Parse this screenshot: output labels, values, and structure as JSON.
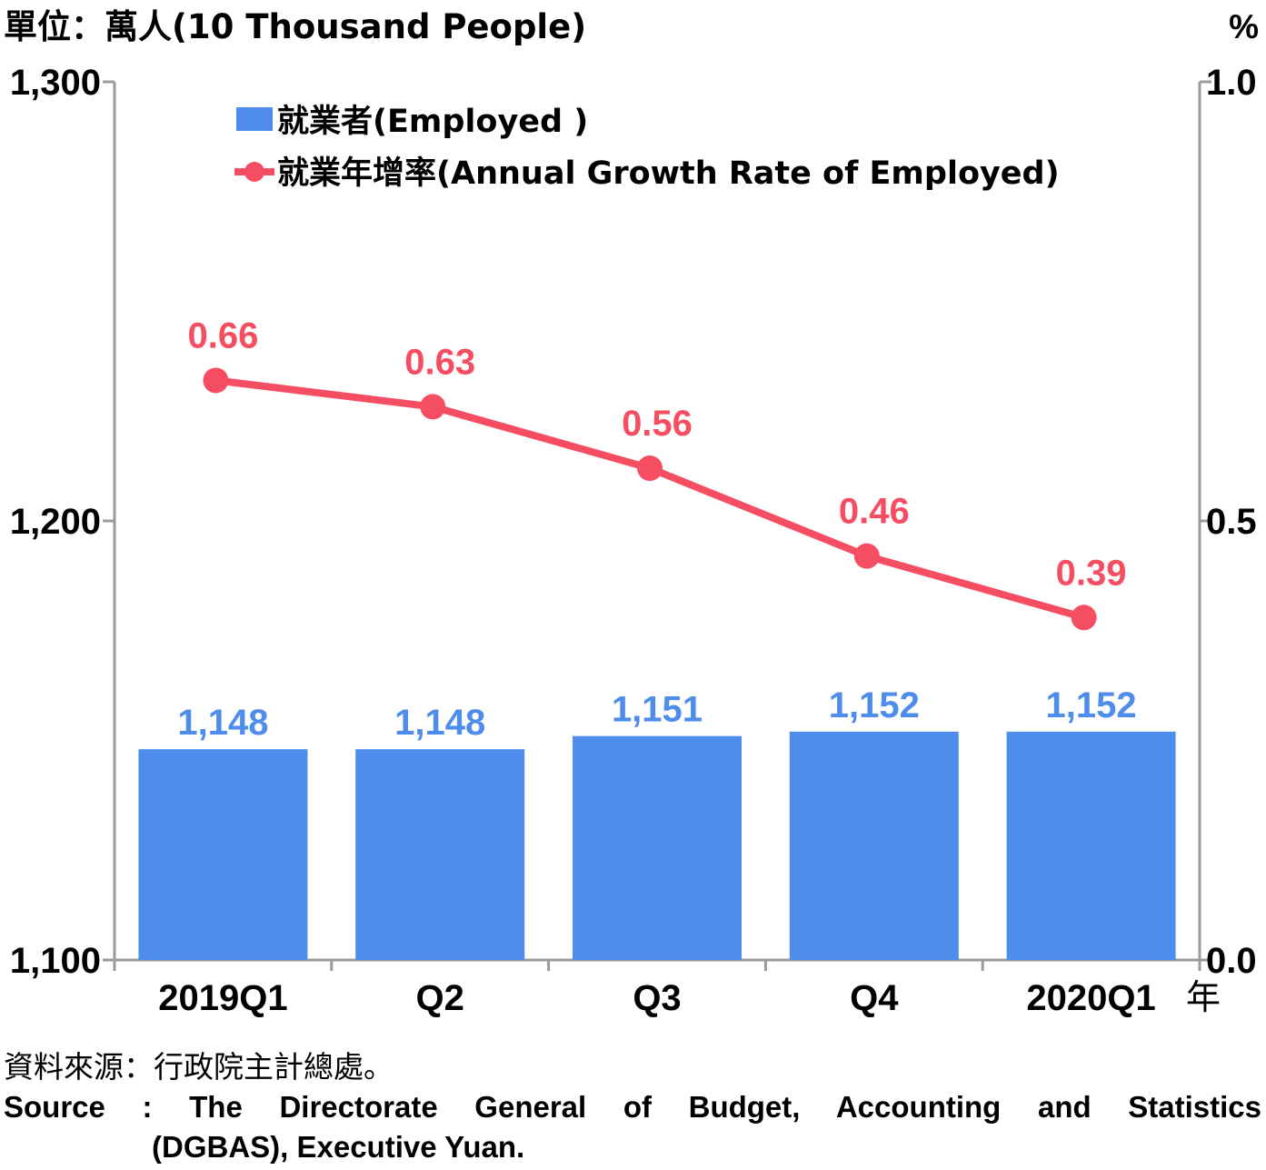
{
  "chart_data": {
    "type": "bar+line",
    "unit_left": "單位：萬人(10 Thousand People)",
    "unit_right": "%",
    "x_unit": "年",
    "categories": [
      "2019Q1",
      "Q2",
      "Q3",
      "Q4",
      "2020Q1"
    ],
    "y_left": {
      "min": 1100,
      "max": 1300,
      "ticks": [
        "1,100",
        "1,200",
        "1,300"
      ]
    },
    "y_right": {
      "min": 0.0,
      "max": 1.0,
      "ticks": [
        "0.0",
        "0.5",
        "1.0"
      ]
    },
    "series": [
      {
        "name": "就業者(Employed )",
        "type": "bar",
        "axis": "left",
        "color": "#4f8ded",
        "values": [
          1148,
          1148,
          1151,
          1152,
          1152
        ],
        "labels": [
          "1,148",
          "1,148",
          "1,151",
          "1,152",
          "1,152"
        ],
        "label_color": "#4f8ded"
      },
      {
        "name": "就業年增率(Annual Growth Rate of Employed)",
        "type": "line",
        "axis": "right",
        "color": "#f54d61",
        "values": [
          0.66,
          0.63,
          0.56,
          0.46,
          0.39
        ],
        "labels": [
          "0.66",
          "0.63",
          "0.56",
          "0.46",
          "0.39"
        ]
      }
    ],
    "legend_position": "top-left inside plot",
    "grid": false
  },
  "source": {
    "zh": "資料來源：行政院主計總處。",
    "en_line1": "Source : The Directorate General of Budget, Accounting and Statistics",
    "en_line2": "(DGBAS), Executive Yuan."
  }
}
